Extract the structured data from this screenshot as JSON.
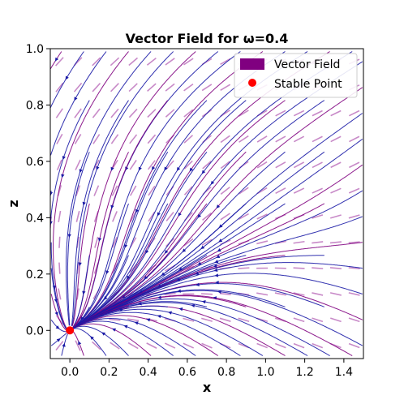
{
  "chart_data": {
    "type": "streamplot",
    "title": "Vector Field for ω=0.4",
    "xlabel": "x",
    "ylabel": "z",
    "xlim": [
      -0.1,
      1.5
    ],
    "ylim": [
      -0.1,
      1.0
    ],
    "xticks": [
      "0.0",
      "0.2",
      "0.4",
      "0.6",
      "0.8",
      "1.0",
      "1.2",
      "1.4"
    ],
    "xtick_values": [
      0.0,
      0.2,
      0.4,
      0.6,
      0.8,
      1.0,
      1.2,
      1.4
    ],
    "yticks": [
      "0.0",
      "0.2",
      "0.4",
      "0.6",
      "0.8",
      "1.0"
    ],
    "ytick_values": [
      0.0,
      0.2,
      0.4,
      0.6,
      0.8,
      1.0
    ],
    "grid": false,
    "legend": {
      "position": "top-right",
      "entries": [
        {
          "label": "Vector Field",
          "marker": "rect",
          "color": "#800080"
        },
        {
          "label": "Stable Point",
          "marker": "circle",
          "color": "#ff0000"
        }
      ]
    },
    "stable_point": {
      "x": 0.0,
      "z": 0.0
    },
    "colors": {
      "stream": "#1a1aa6",
      "stream_alt": "#800080",
      "quiver": "#9a2a9a",
      "stable": "#ff0000"
    }
  }
}
